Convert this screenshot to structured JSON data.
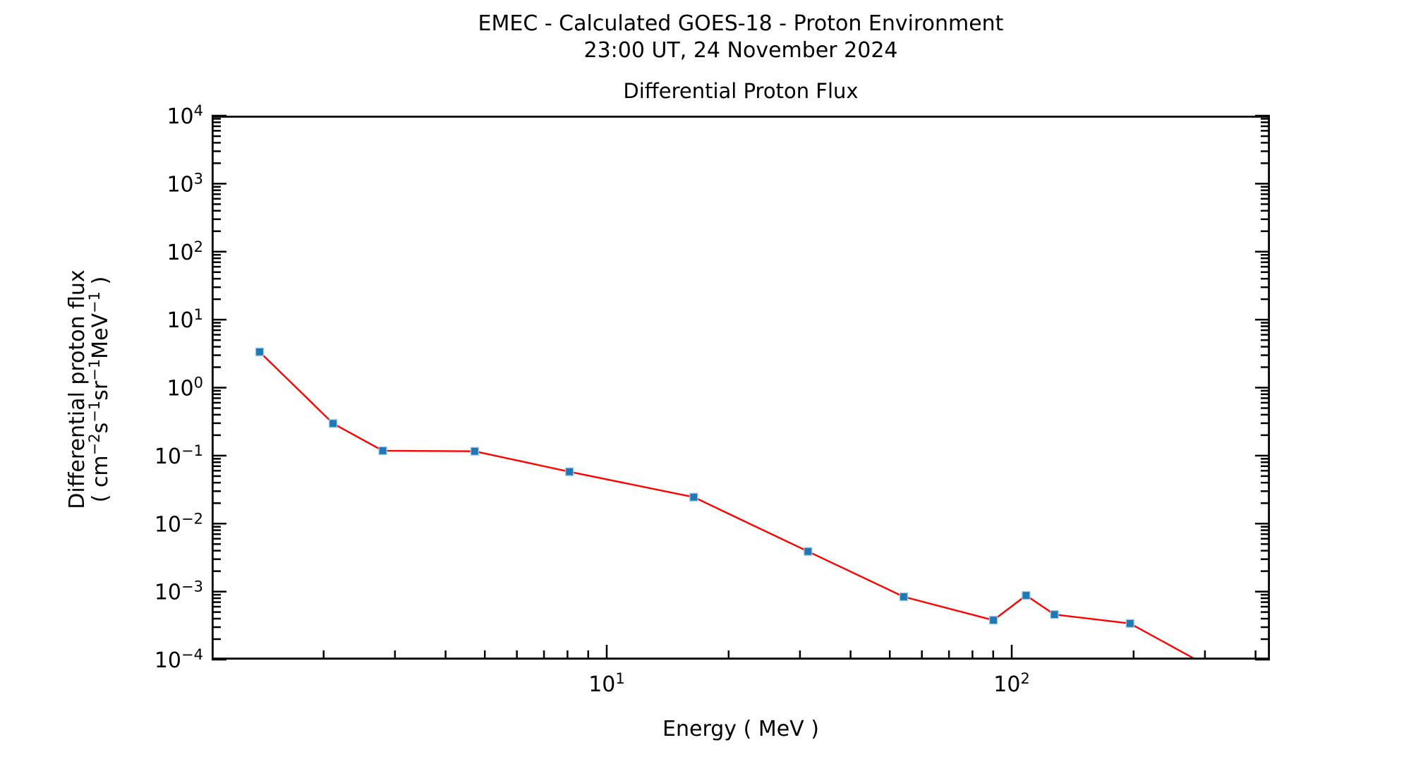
{
  "header": {
    "title_line1": "EMEC - Calculated GOES-18 - Proton Environment",
    "title_line2": "23:00 UT, 24 November 2024"
  },
  "chart_data": {
    "type": "line",
    "title": "Differential Proton Flux",
    "xlabel": "Energy ( MeV )",
    "ylabel": "Differential proton flux",
    "ylabel_units_parts": [
      {
        "text": "( cm"
      },
      {
        "sup": "−2"
      },
      {
        "text": "s"
      },
      {
        "sup": "−1"
      },
      {
        "text": "sr"
      },
      {
        "sup": "−1"
      },
      {
        "text": "MeV"
      },
      {
        "sup": "−1"
      },
      {
        "text": " )"
      }
    ],
    "grid": false,
    "legend": null,
    "x_axis": {
      "scale": "log",
      "min": 1.058,
      "max": 434,
      "major_ticks": [
        {
          "value": 10,
          "exp": 1
        },
        {
          "value": 100,
          "exp": 2
        }
      ],
      "minor_tick_values": [
        2,
        3,
        4,
        5,
        6,
        7,
        8,
        9,
        20,
        30,
        40,
        50,
        60,
        70,
        80,
        90,
        200,
        300,
        400
      ]
    },
    "y_axis": {
      "scale": "log",
      "min": 0.0001,
      "max": 10000.0,
      "major_ticks": [
        {
          "value": 10000,
          "exp": 4
        },
        {
          "value": 1000,
          "exp": 3
        },
        {
          "value": 100,
          "exp": 2
        },
        {
          "value": 10,
          "exp": 1
        },
        {
          "value": 1,
          "exp": 0
        },
        {
          "value": 0.1,
          "exp": -1
        },
        {
          "value": 0.01,
          "exp": -2
        },
        {
          "value": 0.001,
          "exp": -3
        },
        {
          "value": 0.0001,
          "exp": -4
        }
      ],
      "minor_pattern": [
        2,
        3,
        4,
        5,
        6,
        7,
        8,
        9
      ]
    },
    "series": [
      {
        "name": "Differential proton flux",
        "line_color": "#ff0000",
        "marker": "square",
        "marker_color": "#1f77b4",
        "marker_edge_color": "#9ec7e4",
        "x": [
          1.39,
          2.11,
          2.8,
          4.72,
          8.09,
          16.4,
          31.4,
          54.1,
          90.1,
          108.5,
          127.5,
          196.0,
          330.0
        ],
        "y": [
          3.36,
          0.297,
          0.118,
          0.116,
          0.058,
          0.0245,
          0.0039,
          0.00084,
          0.00038,
          0.00088,
          0.00046,
          0.00034,
          6.2e-05
        ],
        "note": "last point lies below the y-axis lower limit; line is clipped at the axes boundary"
      }
    ]
  }
}
